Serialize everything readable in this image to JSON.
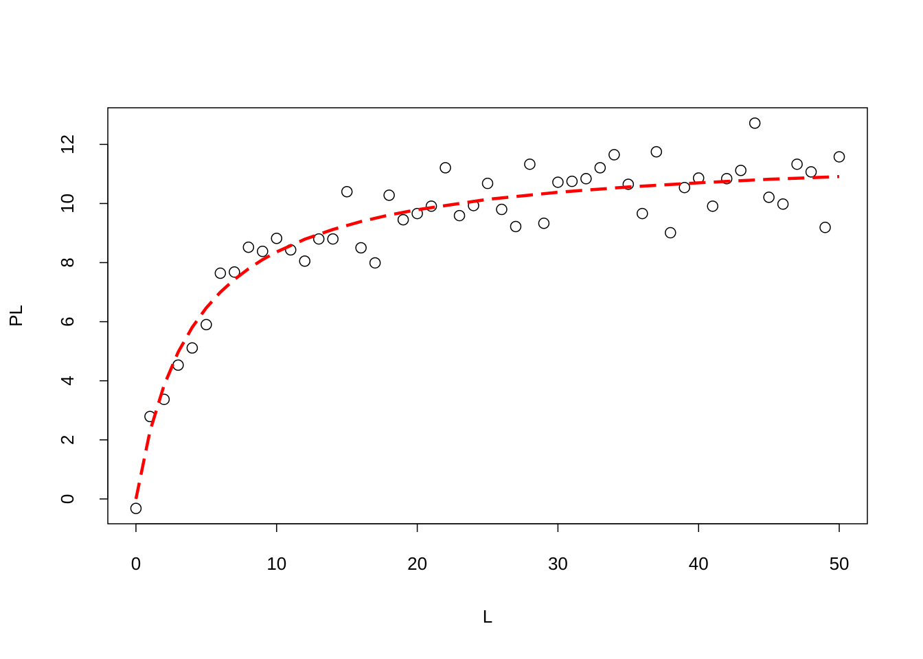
{
  "chart_data": {
    "type": "scatter",
    "xlabel": "L",
    "ylabel": "PL",
    "xlim": [
      -2,
      52
    ],
    "ylim": [
      -0.84,
      13.24
    ],
    "xticks": [
      0,
      10,
      20,
      30,
      40,
      50
    ],
    "yticks": [
      0,
      2,
      4,
      6,
      8,
      10,
      12
    ],
    "series": [
      {
        "marker": "circle",
        "color": "#000000",
        "x": [
          0,
          1,
          2,
          3,
          4,
          5,
          6,
          7,
          8,
          9,
          10,
          11,
          12,
          13,
          14,
          15,
          16,
          17,
          18,
          19,
          20,
          21,
          22,
          23,
          24,
          25,
          26,
          27,
          28,
          29,
          30,
          31,
          32,
          33,
          34,
          35,
          36,
          37,
          38,
          39,
          40,
          41,
          42,
          43,
          44,
          45,
          46,
          47,
          48,
          49,
          50
        ],
        "values": [
          -0.32,
          2.79,
          3.37,
          4.53,
          5.11,
          5.9,
          7.64,
          7.68,
          8.52,
          8.38,
          8.82,
          8.43,
          8.05,
          8.8,
          8.8,
          10.4,
          8.5,
          7.99,
          10.28,
          9.45,
          9.66,
          9.91,
          11.21,
          9.59,
          9.93,
          10.68,
          9.8,
          9.22,
          11.33,
          9.33,
          10.72,
          10.75,
          10.84,
          11.21,
          11.65,
          10.65,
          9.66,
          11.75,
          9.01,
          10.54,
          10.86,
          9.91,
          10.84,
          11.12,
          12.72,
          10.21,
          9.98,
          11.33,
          11.07,
          9.19,
          11.58
        ]
      },
      {
        "marker": "dashed-line",
        "color": "#ff0000",
        "x": [
          0,
          1,
          2,
          3,
          4,
          5,
          6,
          7,
          8,
          9,
          10,
          12,
          14,
          16,
          18,
          20,
          25,
          30,
          35,
          40,
          45,
          50
        ],
        "values": [
          0,
          2.3,
          3.85,
          4.97,
          5.81,
          6.47,
          7.0,
          7.43,
          7.79,
          8.1,
          8.36,
          8.79,
          9.12,
          9.39,
          9.61,
          9.79,
          10.14,
          10.38,
          10.56,
          10.7,
          10.82,
          10.91
        ]
      }
    ]
  }
}
